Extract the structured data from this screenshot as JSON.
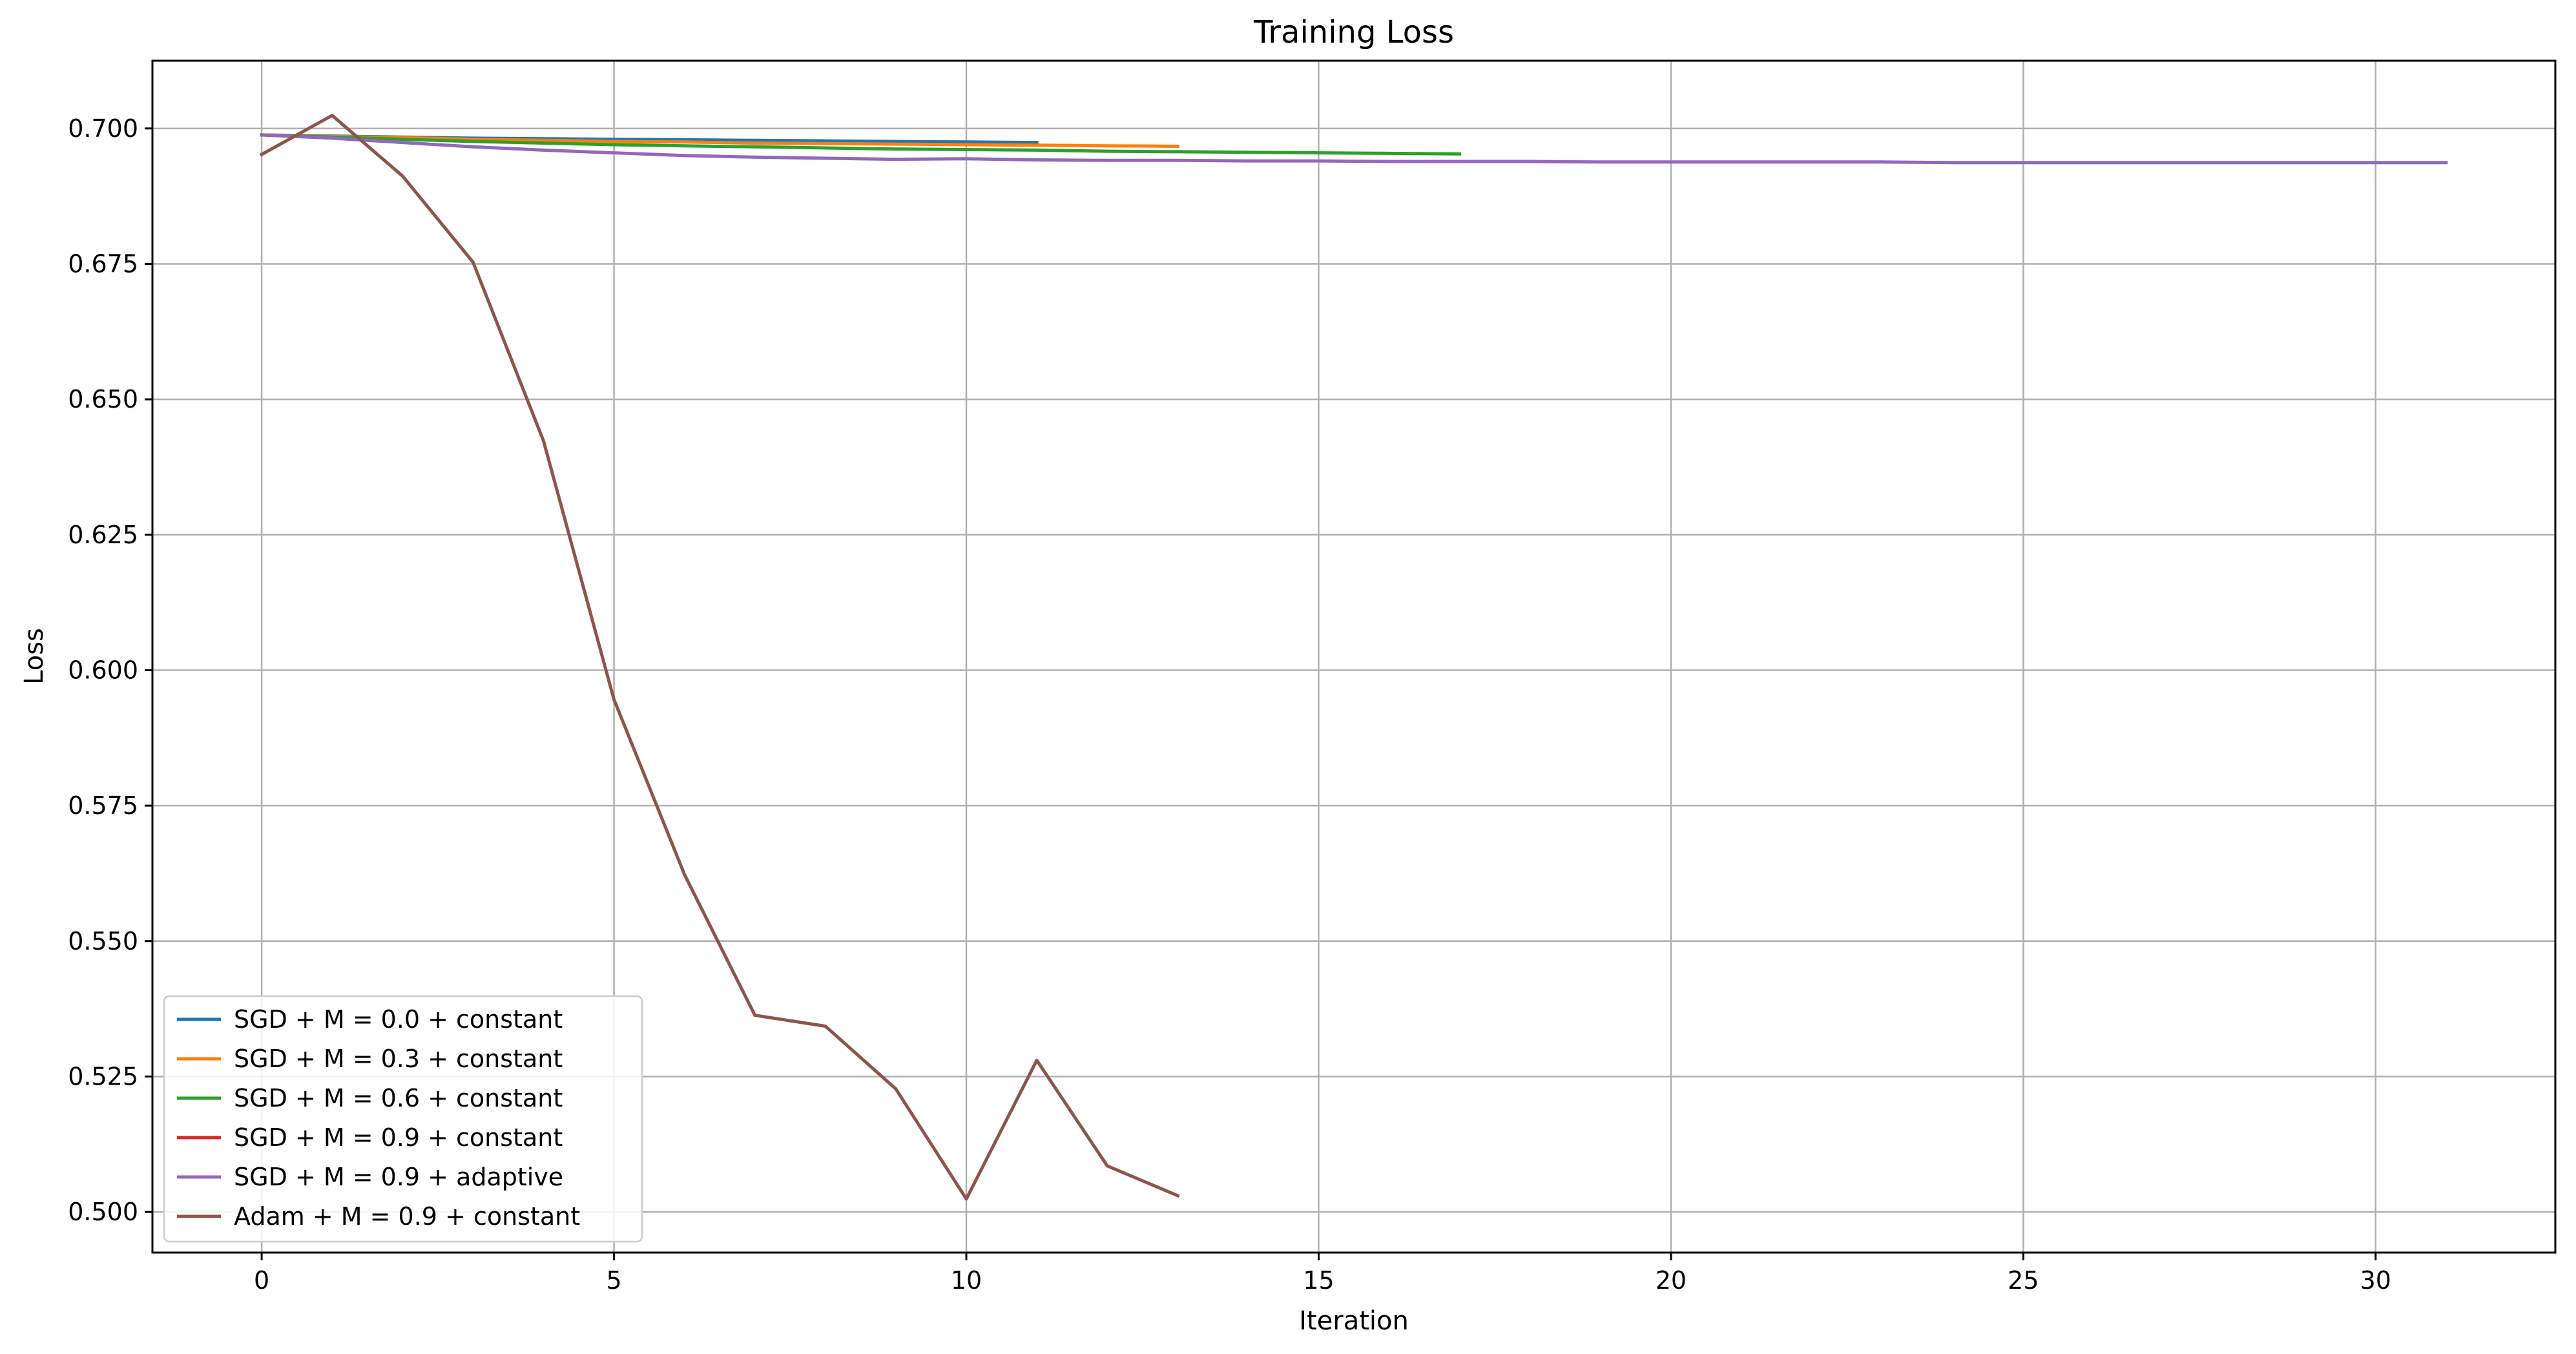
{
  "chart_data": {
    "type": "line",
    "title": "Training Loss",
    "xlabel": "Iteration",
    "ylabel": "Loss",
    "xlim": [
      -1.55,
      32.55
    ],
    "ylim": [
      0.4925,
      0.7125
    ],
    "xticks": [
      0,
      5,
      10,
      15,
      20,
      25,
      30
    ],
    "yticks": [
      0.5,
      0.525,
      0.55,
      0.575,
      0.6,
      0.625,
      0.65,
      0.675,
      0.7
    ],
    "xtick_labels": [
      "0",
      "5",
      "10",
      "15",
      "20",
      "25",
      "30"
    ],
    "ytick_labels": [
      "0.500",
      "0.525",
      "0.550",
      "0.575",
      "0.600",
      "0.625",
      "0.650",
      "0.675",
      "0.700"
    ],
    "grid": true,
    "legend_position": "lower-left",
    "series": [
      {
        "name": "SGD + M = 0.0 + constant",
        "color": "#1f77b4",
        "x": [
          0,
          1,
          2,
          3,
          4,
          5,
          6,
          7,
          8,
          9,
          10,
          11
        ],
        "y": [
          0.6988,
          0.6986,
          0.6984,
          0.6982,
          0.6981,
          0.698,
          0.6979,
          0.6978,
          0.6977,
          0.6976,
          0.6975,
          0.6974
        ]
      },
      {
        "name": "SGD + M = 0.3 + constant",
        "color": "#ff7f0e",
        "x": [
          0,
          1,
          2,
          3,
          4,
          5,
          6,
          7,
          8,
          9,
          10,
          11,
          12,
          13
        ],
        "y": [
          0.6988,
          0.6985,
          0.6983,
          0.698,
          0.6978,
          0.6976,
          0.6975,
          0.6973,
          0.6972,
          0.6971,
          0.697,
          0.6969,
          0.6968,
          0.6967
        ]
      },
      {
        "name": "SGD + M = 0.6 + constant",
        "color": "#2ca02c",
        "x": [
          0,
          1,
          2,
          3,
          4,
          5,
          6,
          7,
          8,
          9,
          10,
          11,
          12,
          13,
          14,
          15,
          16,
          17
        ],
        "y": [
          0.6988,
          0.6984,
          0.698,
          0.6976,
          0.6973,
          0.697,
          0.6968,
          0.6966,
          0.6964,
          0.6962,
          0.6961,
          0.696,
          0.6958,
          0.6957,
          0.6956,
          0.6955,
          0.6954,
          0.6953
        ]
      },
      {
        "name": "SGD + M = 0.9 + constant",
        "color": "#d62728",
        "x": [],
        "y": []
      },
      {
        "name": "SGD + M = 0.9 + adaptive",
        "color": "#9467bd",
        "x": [
          0,
          1,
          2,
          3,
          4,
          5,
          6,
          7,
          8,
          9,
          10,
          11,
          12,
          13,
          14,
          15,
          16,
          17,
          18,
          19,
          20,
          21,
          22,
          23,
          24,
          25,
          26,
          27,
          28,
          29,
          30,
          31
        ],
        "y": [
          0.6988,
          0.6982,
          0.6974,
          0.6966,
          0.696,
          0.6955,
          0.695,
          0.6947,
          0.6945,
          0.6943,
          0.6944,
          0.6942,
          0.6941,
          0.6941,
          0.694,
          0.694,
          0.6939,
          0.6939,
          0.6939,
          0.6938,
          0.6938,
          0.6938,
          0.6938,
          0.6938,
          0.6937,
          0.6937,
          0.6937,
          0.6937,
          0.6937,
          0.6937,
          0.6937,
          0.6937
        ]
      },
      {
        "name": "Adam + M = 0.9 + constant",
        "color": "#8c564b",
        "x": [
          0,
          1,
          2,
          3,
          4,
          5,
          6,
          7,
          8,
          9,
          10,
          11,
          12,
          13
        ],
        "y": [
          0.6952,
          0.7024,
          0.6912,
          0.6753,
          0.6423,
          0.5946,
          0.5623,
          0.5363,
          0.5343,
          0.5227,
          0.5024,
          0.528,
          0.5085,
          0.503
        ]
      }
    ]
  }
}
